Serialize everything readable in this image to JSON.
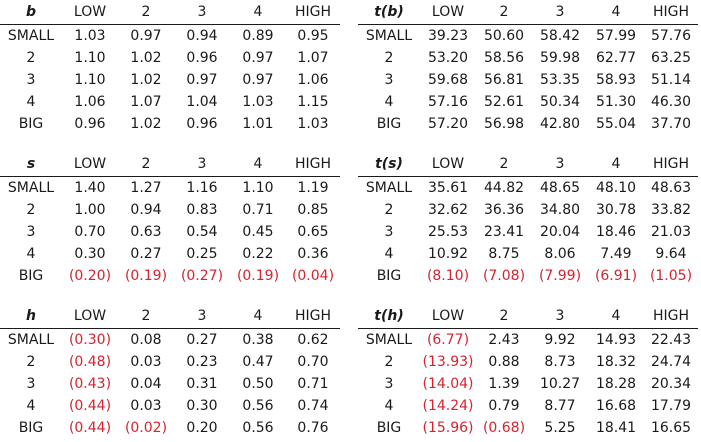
{
  "colors": {
    "negative": "#d6232f",
    "text": "#1a1a1a"
  },
  "columns": [
    "LOW",
    "2",
    "3",
    "4",
    "HIGH"
  ],
  "rows": [
    "SMALL",
    "2",
    "3",
    "4",
    "BIG"
  ],
  "tables": {
    "b": {
      "label": "b",
      "values": [
        [
          "1.03",
          "0.97",
          "0.94",
          "0.89",
          "0.95"
        ],
        [
          "1.10",
          "1.02",
          "0.96",
          "0.97",
          "1.07"
        ],
        [
          "1.10",
          "1.02",
          "0.97",
          "0.97",
          "1.06"
        ],
        [
          "1.06",
          "1.07",
          "1.04",
          "1.03",
          "1.15"
        ],
        [
          "0.96",
          "1.02",
          "0.96",
          "1.01",
          "1.03"
        ]
      ]
    },
    "tb": {
      "label": "t(b)",
      "values": [
        [
          "39.23",
          "50.60",
          "58.42",
          "57.99",
          "57.76"
        ],
        [
          "53.20",
          "58.56",
          "59.98",
          "62.77",
          "63.25"
        ],
        [
          "59.68",
          "56.81",
          "53.35",
          "58.93",
          "51.14"
        ],
        [
          "57.16",
          "52.61",
          "50.34",
          "51.30",
          "46.30"
        ],
        [
          "57.20",
          "56.98",
          "42.80",
          "55.04",
          "37.70"
        ]
      ]
    },
    "s": {
      "label": "s",
      "values": [
        [
          "1.40",
          "1.27",
          "1.16",
          "1.10",
          "1.19"
        ],
        [
          "1.00",
          "0.94",
          "0.83",
          "0.71",
          "0.85"
        ],
        [
          "0.70",
          "0.63",
          "0.54",
          "0.45",
          "0.65"
        ],
        [
          "0.30",
          "0.27",
          "0.25",
          "0.22",
          "0.36"
        ],
        [
          "(0.20)",
          "(0.19)",
          "(0.27)",
          "(0.19)",
          "(0.04)"
        ]
      ]
    },
    "ts": {
      "label": "t(s)",
      "values": [
        [
          "35.61",
          "44.82",
          "48.65",
          "48.10",
          "48.63"
        ],
        [
          "32.62",
          "36.36",
          "34.80",
          "30.78",
          "33.82"
        ],
        [
          "25.53",
          "23.41",
          "20.04",
          "18.46",
          "21.03"
        ],
        [
          "10.92",
          "8.75",
          "8.06",
          "7.49",
          "9.64"
        ],
        [
          "(8.10)",
          "(7.08)",
          "(7.99)",
          "(6.91)",
          "(1.05)"
        ]
      ]
    },
    "h": {
      "label": "h",
      "values": [
        [
          "(0.30)",
          "0.08",
          "0.27",
          "0.38",
          "0.62"
        ],
        [
          "(0.48)",
          "0.03",
          "0.23",
          "0.47",
          "0.70"
        ],
        [
          "(0.43)",
          "0.04",
          "0.31",
          "0.50",
          "0.71"
        ],
        [
          "(0.44)",
          "0.03",
          "0.30",
          "0.56",
          "0.74"
        ],
        [
          "(0.44)",
          "(0.02)",
          "0.20",
          "0.56",
          "0.76"
        ]
      ]
    },
    "th": {
      "label": "t(h)",
      "values": [
        [
          "(6.77)",
          "2.43",
          "9.92",
          "14.93",
          "22.43"
        ],
        [
          "(13.93)",
          "0.88",
          "8.73",
          "18.32",
          "24.74"
        ],
        [
          "(14.04)",
          "1.39",
          "10.27",
          "18.28",
          "20.34"
        ],
        [
          "(14.24)",
          "0.79",
          "8.77",
          "16.68",
          "17.79"
        ],
        [
          "(15.96)",
          "(0.68)",
          "5.25",
          "18.41",
          "16.65"
        ]
      ]
    }
  }
}
